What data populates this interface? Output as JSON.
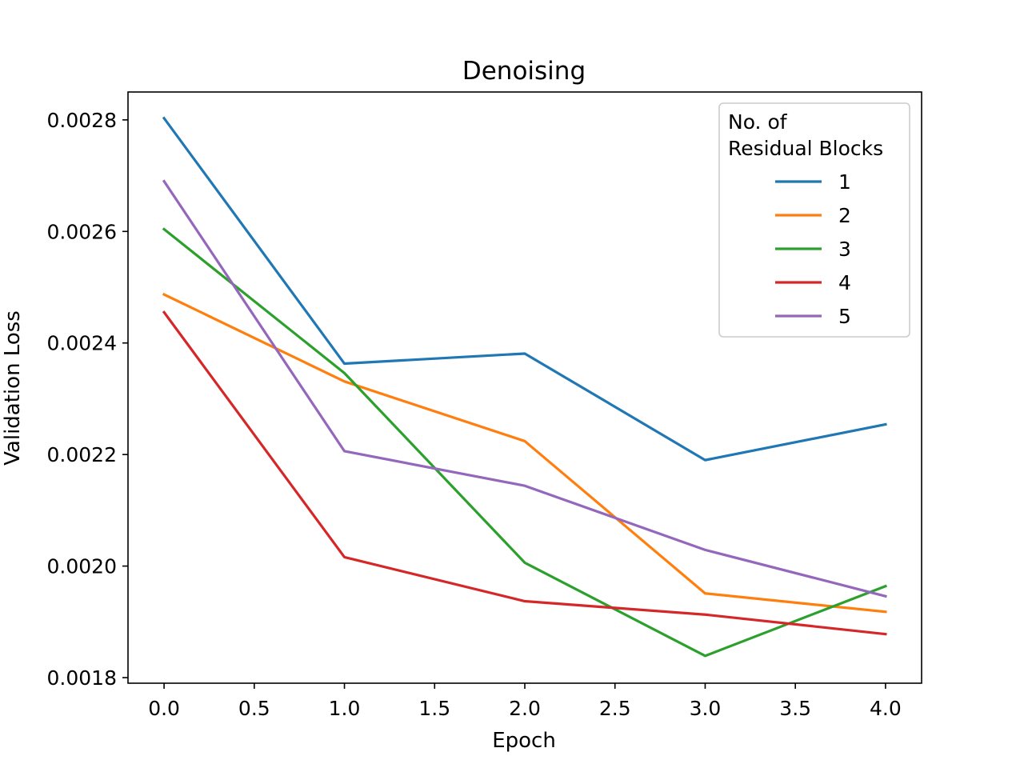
{
  "chart_data": {
    "type": "line",
    "title": "Denoising",
    "xlabel": "Epoch",
    "ylabel": "Validation Loss",
    "x": [
      0,
      1,
      2,
      3,
      4
    ],
    "xlim": [
      -0.2,
      4.2
    ],
    "ylim": [
      0.00179,
      0.00285
    ],
    "x_ticks": [
      0.0,
      0.5,
      1.0,
      1.5,
      2.0,
      2.5,
      3.0,
      3.5,
      4.0
    ],
    "x_tick_labels": [
      "0.0",
      "0.5",
      "1.0",
      "1.5",
      "2.0",
      "2.5",
      "3.0",
      "3.5",
      "4.0"
    ],
    "y_ticks": [
      0.0018,
      0.002,
      0.0022,
      0.0024,
      0.0026,
      0.0028
    ],
    "y_tick_labels": [
      "0.0018",
      "0.0020",
      "0.0022",
      "0.0024",
      "0.0026",
      "0.0028"
    ],
    "grid": false,
    "legend": {
      "title_line1": "No. of",
      "title_line2": "Residual Blocks",
      "placement": "top-right"
    },
    "series": [
      {
        "name": "1",
        "color": "#1f77b4",
        "values": [
          0.002803,
          0.002363,
          0.002381,
          0.00219,
          0.002254
        ]
      },
      {
        "name": "2",
        "color": "#ff7f0e",
        "values": [
          0.002487,
          0.002331,
          0.002224,
          0.001951,
          0.001918
        ]
      },
      {
        "name": "3",
        "color": "#2ca02c",
        "values": [
          0.002604,
          0.002346,
          0.002006,
          0.001839,
          0.001964
        ]
      },
      {
        "name": "4",
        "color": "#d62728",
        "values": [
          0.002455,
          0.002016,
          0.001937,
          0.001913,
          0.001878
        ]
      },
      {
        "name": "5",
        "color": "#9467bd",
        "values": [
          0.00269,
          0.002206,
          0.002144,
          0.002029,
          0.001946
        ]
      }
    ]
  }
}
